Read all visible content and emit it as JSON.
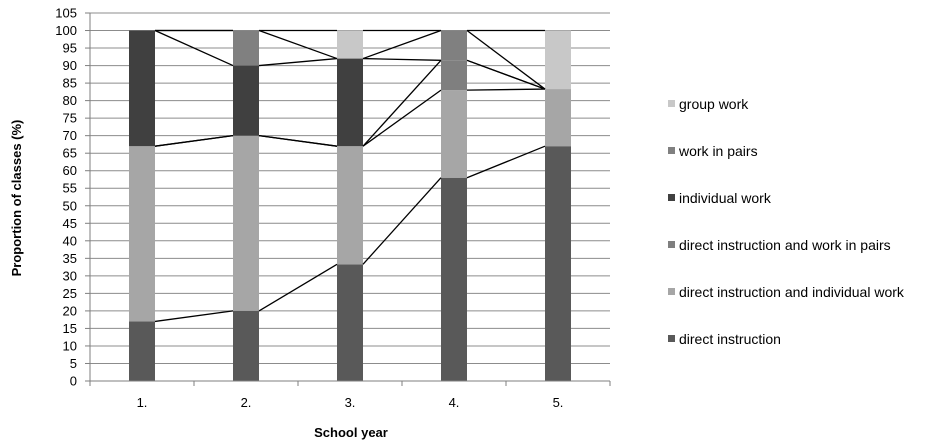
{
  "chart_data": {
    "type": "bar",
    "stacked": true,
    "xlabel": "School year",
    "ylabel": "Proportion of classes (%)",
    "ylim": [
      0,
      105
    ],
    "ytick_step": 5,
    "grid": true,
    "categories": [
      "1.",
      "2.",
      "3.",
      "4.",
      "5."
    ],
    "series": [
      {
        "name": "direct instruction",
        "color": "#595959",
        "values": [
          17,
          20,
          33.3,
          58,
          67
        ]
      },
      {
        "name": "direct instruction and individual work",
        "color": "#a6a6a6",
        "values": [
          50,
          50,
          33.7,
          25,
          16.3
        ]
      },
      {
        "name": "direct instruction and work in pairs",
        "color": "#7f7f7f",
        "values": [
          0,
          0,
          0,
          8.5,
          0
        ]
      },
      {
        "name": "individual work",
        "color": "#404040",
        "values": [
          33,
          20,
          25,
          0,
          0
        ]
      },
      {
        "name": "work in pairs",
        "color": "#808080",
        "values": [
          0,
          10,
          0,
          8.5,
          0
        ]
      },
      {
        "name": "group work",
        "color": "#c8c8c8",
        "values": [
          0,
          0,
          8,
          0,
          16.7
        ]
      }
    ],
    "legend_position": "right",
    "legend_order": [
      "group work",
      "work in pairs",
      "individual work",
      "direct instruction and work in pairs",
      "direct instruction and individual work",
      "direct instruction"
    ]
  }
}
